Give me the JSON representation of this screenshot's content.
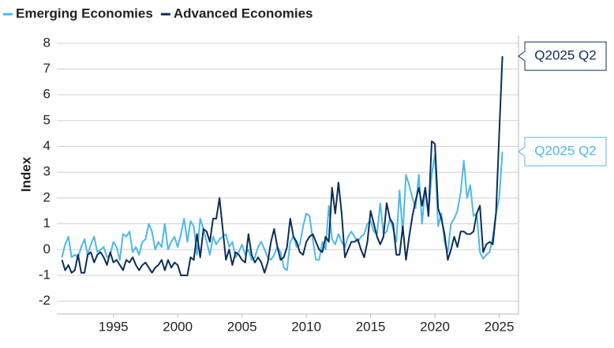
{
  "chart_data": {
    "type": "line",
    "y_label": "Index",
    "x": [
      1991,
      1991.25,
      1991.5,
      1991.75,
      1992,
      1992.25,
      1992.5,
      1992.75,
      1993,
      1993.25,
      1993.5,
      1993.75,
      1994,
      1994.25,
      1994.5,
      1994.75,
      1995,
      1995.25,
      1995.5,
      1995.75,
      1996,
      1996.25,
      1996.5,
      1996.75,
      1997,
      1997.25,
      1997.5,
      1997.75,
      1998,
      1998.25,
      1998.5,
      1998.75,
      1999,
      1999.25,
      1999.5,
      1999.75,
      2000,
      2000.25,
      2000.5,
      2000.75,
      2001,
      2001.25,
      2001.5,
      2001.75,
      2002,
      2002.25,
      2002.5,
      2002.75,
      2003,
      2003.25,
      2003.5,
      2003.75,
      2004,
      2004.25,
      2004.5,
      2004.75,
      2005,
      2005.25,
      2005.5,
      2005.75,
      2006,
      2006.25,
      2006.5,
      2006.75,
      2007,
      2007.25,
      2007.5,
      2007.75,
      2008,
      2008.25,
      2008.5,
      2008.75,
      2009,
      2009.25,
      2009.5,
      2009.75,
      2010,
      2010.25,
      2010.5,
      2010.75,
      2011,
      2011.25,
      2011.5,
      2011.75,
      2012,
      2012.25,
      2012.5,
      2012.75,
      2013,
      2013.25,
      2013.5,
      2013.75,
      2014,
      2014.25,
      2014.5,
      2014.75,
      2015,
      2015.25,
      2015.5,
      2015.75,
      2016,
      2016.25,
      2016.5,
      2016.75,
      2017,
      2017.25,
      2017.5,
      2017.75,
      2018,
      2018.25,
      2018.5,
      2018.75,
      2019,
      2019.25,
      2019.5,
      2019.75,
      2020,
      2020.25,
      2020.5,
      2020.75,
      2021,
      2021.25,
      2021.5,
      2021.75,
      2022,
      2022.25,
      2022.5,
      2022.75,
      2023,
      2023.25,
      2023.5,
      2023.75,
      2024,
      2024.25,
      2024.5,
      2024.75,
      2025,
      2025.25
    ],
    "series": [
      {
        "name": "Emerging Economies",
        "color": "#4db8e8",
        "values": [
          -0.3,
          0.2,
          0.5,
          -0.3,
          -0.2,
          -0.3,
          0.1,
          0.4,
          -0.2,
          0.2,
          0.5,
          -0.1,
          0.0,
          0.1,
          -0.3,
          -0.2,
          0.3,
          0.1,
          -0.4,
          0.6,
          0.5,
          0.7,
          -0.1,
          0.1,
          -0.2,
          0.3,
          0.4,
          1.0,
          0.7,
          0.0,
          0.3,
          0.1,
          1.0,
          0.0,
          0.3,
          0.5,
          0.1,
          0.6,
          1.2,
          0.3,
          1.1,
          0.9,
          -0.2,
          1.2,
          0.8,
          0.3,
          -0.2,
          0.5,
          0.2,
          0.4,
          0.5,
          0.6,
          0.1,
          0.3,
          -0.3,
          -0.1,
          0.2,
          -0.2,
          0.0,
          -0.4,
          -0.3,
          0.1,
          0.3,
          0.0,
          -0.3,
          -0.4,
          -0.2,
          0.1,
          -0.1,
          -0.7,
          -0.8,
          0.3,
          0.5,
          0.1,
          0.2,
          0.9,
          1.4,
          1.3,
          0.4,
          -0.4,
          -0.4,
          0.3,
          0.0,
          1.7,
          0.4,
          0.2,
          0.6,
          0.3,
          0.1,
          0.5,
          0.7,
          0.5,
          0.3,
          0.5,
          0.6,
          1.0,
          1.1,
          0.7,
          0.6,
          1.8,
          0.6,
          0.7,
          1.2,
          0.8,
          0.3,
          2.3,
          0.6,
          2.9,
          2.5,
          2.0,
          1.6,
          2.9,
          1.0,
          2.4,
          1.4,
          2.9,
          3.7,
          0.9,
          1.4,
          0.3,
          -0.1,
          1.0,
          1.2,
          1.5,
          2.2,
          3.45,
          2.0,
          2.5,
          1.3,
          1.4,
          -0.1,
          -0.35,
          -0.2,
          -0.1,
          0.5,
          1.4,
          2.0,
          3.8
        ]
      },
      {
        "name": "Advanced Economies",
        "color": "#0b2d5b",
        "values": [
          -0.4,
          -0.8,
          -0.6,
          -0.9,
          -0.8,
          -0.2,
          -0.9,
          -0.9,
          -0.2,
          -0.1,
          -0.5,
          -0.2,
          -0.1,
          -0.3,
          -0.6,
          -0.1,
          -0.5,
          -0.4,
          -0.6,
          -0.8,
          -0.4,
          -0.5,
          -0.3,
          -0.6,
          -0.8,
          -0.6,
          -0.5,
          -0.7,
          -0.9,
          -0.7,
          -0.6,
          -0.4,
          -0.8,
          -0.4,
          -0.7,
          -0.5,
          -0.6,
          -1.0,
          -1.0,
          -1.0,
          -0.3,
          -0.4,
          0.6,
          -0.3,
          0.8,
          0.7,
          0.3,
          1.2,
          1.2,
          2.0,
          0.8,
          -0.4,
          0.0,
          -0.6,
          -0.1,
          -0.2,
          -0.4,
          -0.5,
          0.6,
          -0.2,
          -0.5,
          -0.3,
          -0.5,
          -0.9,
          -0.5,
          0.3,
          0.8,
          0.1,
          -0.4,
          -0.3,
          0.1,
          1.2,
          0.5,
          0.3,
          -0.1,
          -0.2,
          0.3,
          0.5,
          0.6,
          0.3,
          0.0,
          -0.1,
          0.5,
          0.3,
          2.4,
          1.4,
          2.6,
          1.4,
          -0.3,
          0.0,
          0.3,
          0.3,
          0.4,
          0.0,
          -0.3,
          0.3,
          1.5,
          1.0,
          0.5,
          0.2,
          0.5,
          1.8,
          1.2,
          1.0,
          -0.2,
          -0.2,
          0.9,
          -0.4,
          0.5,
          1.3,
          1.9,
          2.4,
          1.7,
          2.4,
          1.3,
          4.2,
          4.1,
          1.6,
          1.2,
          0.6,
          -0.4,
          0.0,
          0.5,
          0.1,
          0.7,
          0.7,
          0.6,
          0.6,
          0.7,
          1.4,
          1.7,
          -0.1,
          0.2,
          0.3,
          0.2,
          1.4,
          4.5,
          7.5
        ]
      }
    ],
    "annotations": [
      {
        "text": "Q2025 Q2",
        "series": 1
      },
      {
        "text": "Q2025 Q2",
        "series": 0
      }
    ],
    "xlim": [
      1990.6,
      2026.5
    ],
    "xticks": [
      1995,
      2000,
      2005,
      2010,
      2015,
      2020,
      2025
    ],
    "ylim": [
      -2.5,
      8.3
    ],
    "yticks": [
      -2,
      -1,
      0,
      1,
      2,
      3,
      4,
      5,
      6,
      7,
      8
    ],
    "grid": true,
    "legend": "top-left"
  }
}
